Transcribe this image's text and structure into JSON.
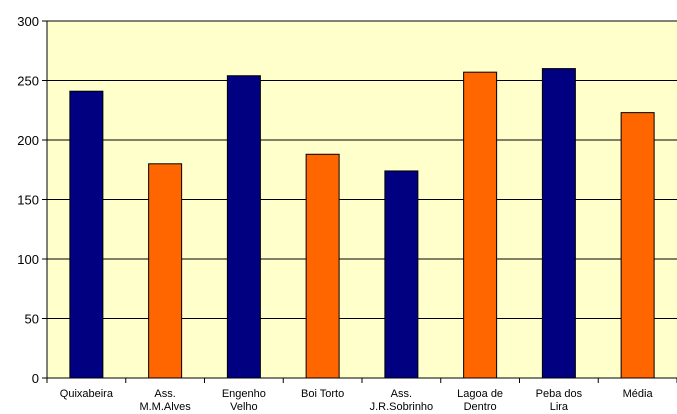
{
  "chart_data": {
    "type": "bar",
    "categories": [
      "Quixabeira",
      "Ass. M.M.Alves",
      "Engenho Velho",
      "Boi Torto",
      "Ass. J.R.Sobrinho",
      "Lagoa de Dentro",
      "Peba dos Lira",
      "Média"
    ],
    "category_lines": [
      [
        "Quixabeira"
      ],
      [
        "Ass.",
        "M.M.Alves"
      ],
      [
        "Engenho",
        "Velho"
      ],
      [
        "Boi Torto"
      ],
      [
        "Ass.",
        "J.R.Sobrinho"
      ],
      [
        "Lagoa de",
        "Dentro"
      ],
      [
        "Peba dos",
        "Lira"
      ],
      [
        "Média"
      ]
    ],
    "values": [
      241,
      180,
      254,
      188,
      174,
      257,
      260,
      223
    ],
    "bar_colors": [
      "#000080",
      "#ff6600",
      "#000080",
      "#ff6600",
      "#000080",
      "#ff6600",
      "#000080",
      "#ff6600"
    ],
    "ylim": [
      0,
      300
    ],
    "yticks": [
      0,
      50,
      100,
      150,
      200,
      250,
      300
    ],
    "grid": true,
    "plot_background": "#ffffcc",
    "title": "",
    "xlabel": "",
    "ylabel": ""
  }
}
